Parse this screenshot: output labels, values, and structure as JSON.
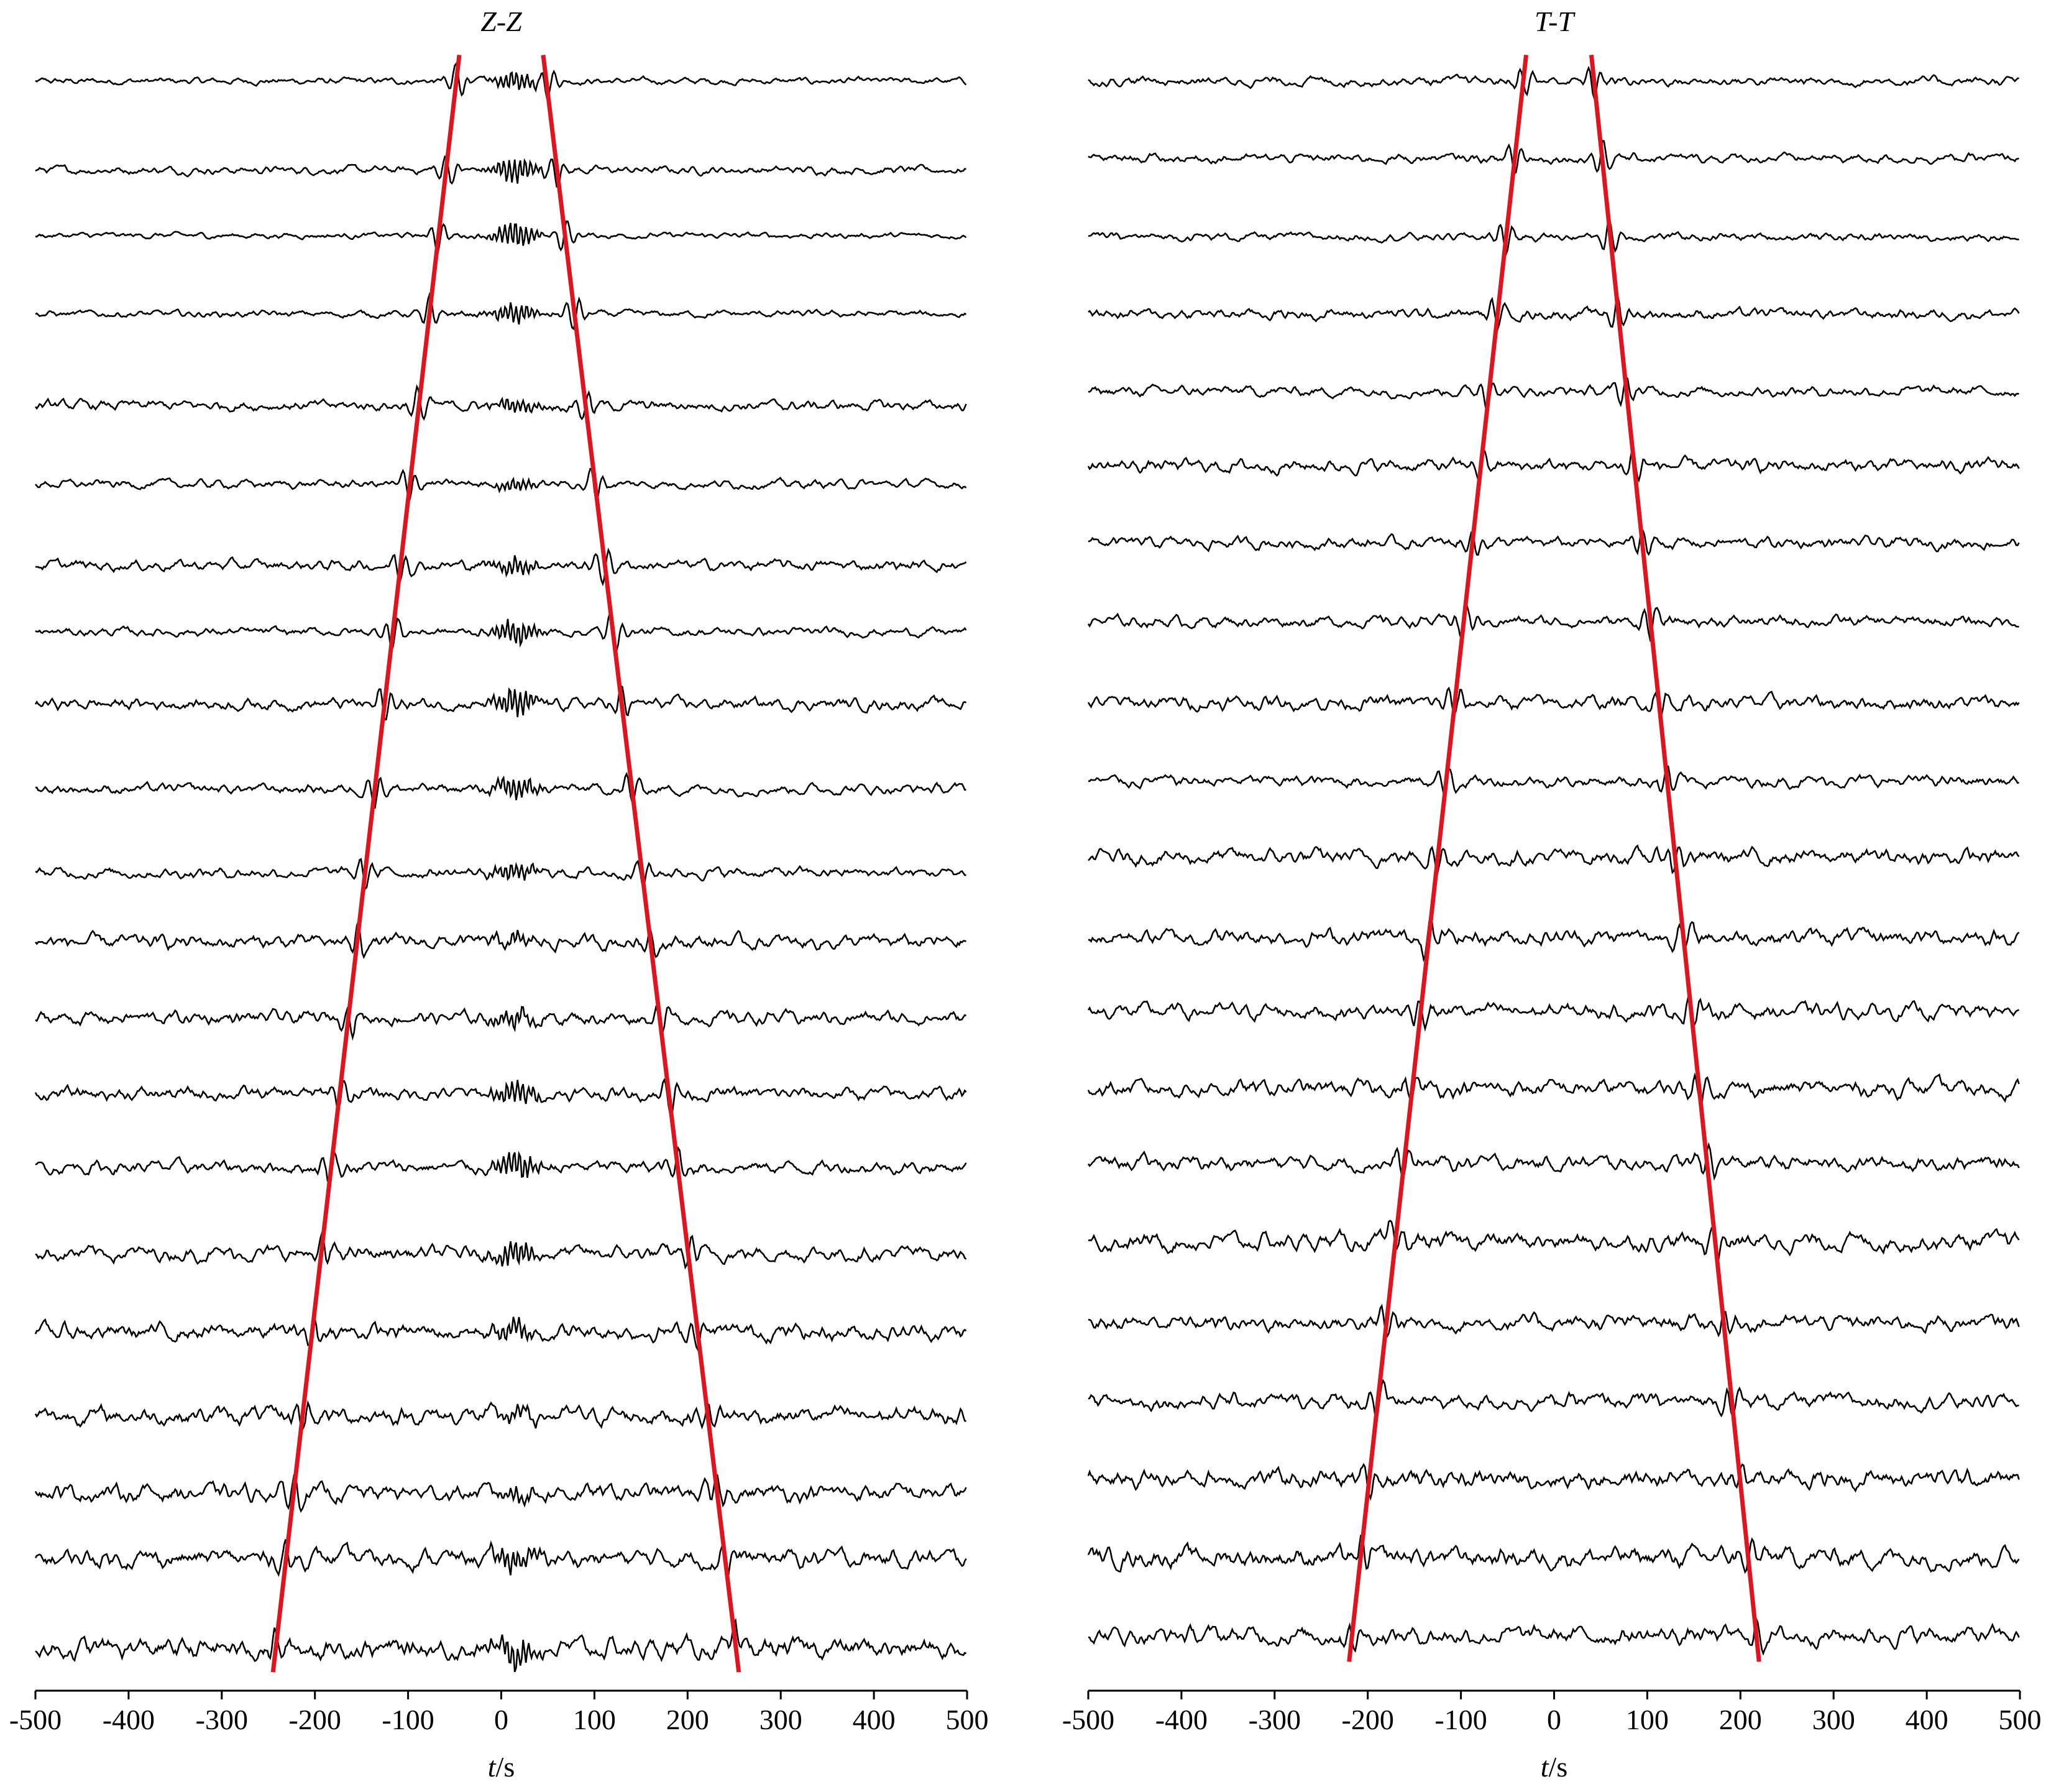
{
  "chart_data": [
    {
      "type": "wiggle",
      "title": "Z-Z",
      "x_label": "t/s",
      "xlim": [
        -500,
        500
      ],
      "xticks": [
        -500,
        -400,
        -300,
        -200,
        -100,
        0,
        100,
        200,
        300,
        400,
        500
      ],
      "trace_color": "#000000",
      "moveout_lines": [
        {
          "top": -45,
          "bottom": -245
        },
        {
          "top": 45,
          "bottom": 255
        }
      ],
      "line_color": "#e0141e"
    },
    {
      "type": "wiggle",
      "title": "T-T",
      "x_label": "t/s",
      "xlim": [
        -500,
        500
      ],
      "xticks": [
        -500,
        -400,
        -300,
        -200,
        -100,
        0,
        100,
        200,
        300,
        400,
        500
      ],
      "trace_color": "#000000",
      "moveout_lines": [
        {
          "top": -30,
          "bottom": -220
        },
        {
          "top": 40,
          "bottom": 220
        }
      ],
      "line_color": "#e0141e"
    }
  ]
}
